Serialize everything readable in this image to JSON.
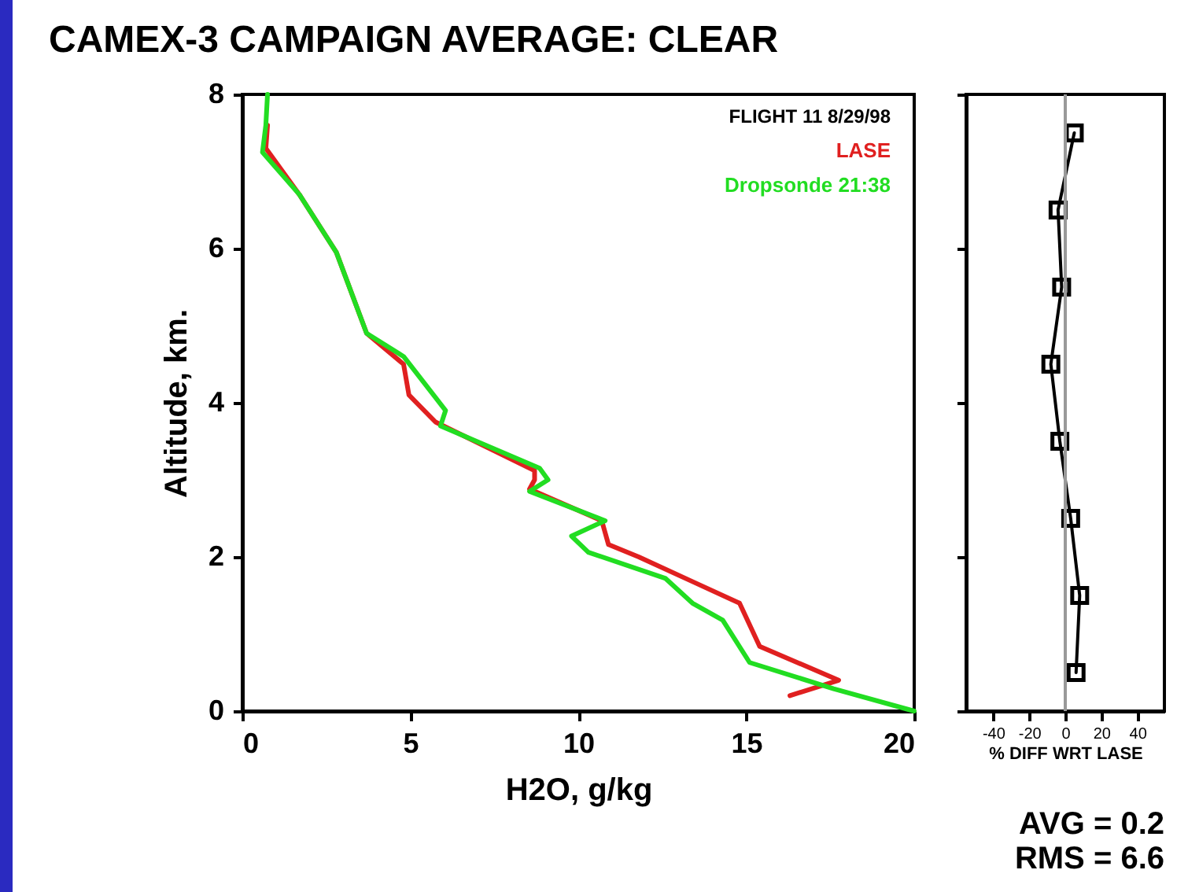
{
  "chart_data": [
    {
      "type": "line",
      "title": "CAMEX-3 CAMPAIGN AVERAGE:   CLEAR",
      "xlabel": "H2O, g/kg",
      "ylabel": "Altitude, km.",
      "xlim": [
        0,
        20
      ],
      "ylim": [
        0,
        8
      ],
      "xticks": [
        0,
        5,
        10,
        15,
        20
      ],
      "yticks": [
        0,
        2,
        4,
        6,
        8
      ],
      "legend": "top right",
      "annotations": [
        "FLIGHT 11 8/29/98"
      ],
      "series": [
        {
          "name": "LASE",
          "color": "#e02020",
          "x": [
            0.75,
            0.7,
            1.7,
            2.8,
            3.7,
            4.8,
            4.96,
            5.75,
            8.7,
            8.7,
            8.55,
            10.7,
            10.9,
            11.8,
            13.4,
            14.8,
            15.4,
            17.75,
            16.3
          ],
          "values": [
            7.6,
            7.3,
            6.7,
            5.95,
            4.9,
            4.5,
            4.1,
            3.75,
            3.12,
            3.0,
            2.88,
            2.47,
            2.16,
            2.0,
            1.68,
            1.4,
            0.84,
            0.4,
            0.2
          ]
        },
        {
          "name": "Dropsonde 21:38",
          "color": "#22dd22",
          "x": [
            0.75,
            0.7,
            0.6,
            1.7,
            2.8,
            3.7,
            4.8,
            6.05,
            5.9,
            8.85,
            9.1,
            8.55,
            10.8,
            9.8,
            10.3,
            12.6,
            13.4,
            14.3,
            15.1,
            17.6,
            20
          ],
          "values": [
            8.0,
            7.6,
            7.25,
            6.7,
            5.95,
            4.9,
            4.6,
            3.9,
            3.7,
            3.15,
            3.0,
            2.85,
            2.47,
            2.27,
            2.06,
            1.72,
            1.4,
            1.18,
            0.63,
            0.29,
            0
          ]
        }
      ]
    },
    {
      "type": "line",
      "xlabel": "% DIFF WRT LASE",
      "xlim": [
        -55,
        55
      ],
      "ylim": [
        0,
        8
      ],
      "xticks": [
        -40,
        -20,
        0,
        20,
        40
      ],
      "yticks": [
        0,
        2,
        4,
        6,
        8
      ],
      "tick_labels": "x",
      "marker": "square",
      "annotations": [
        "AVG = 0.2",
        "RMS = 6.6"
      ],
      "ref_lines": [
        {
          "axis": "x",
          "value": 0,
          "color": "#999999"
        }
      ],
      "series": [
        {
          "color": "#000000",
          "x": [
            5,
            -4,
            -2,
            -8,
            -3,
            3,
            8,
            6
          ],
          "values": [
            7.5,
            6.5,
            5.5,
            4.5,
            3.5,
            2.5,
            1.5,
            0.5
          ]
        }
      ]
    }
  ]
}
